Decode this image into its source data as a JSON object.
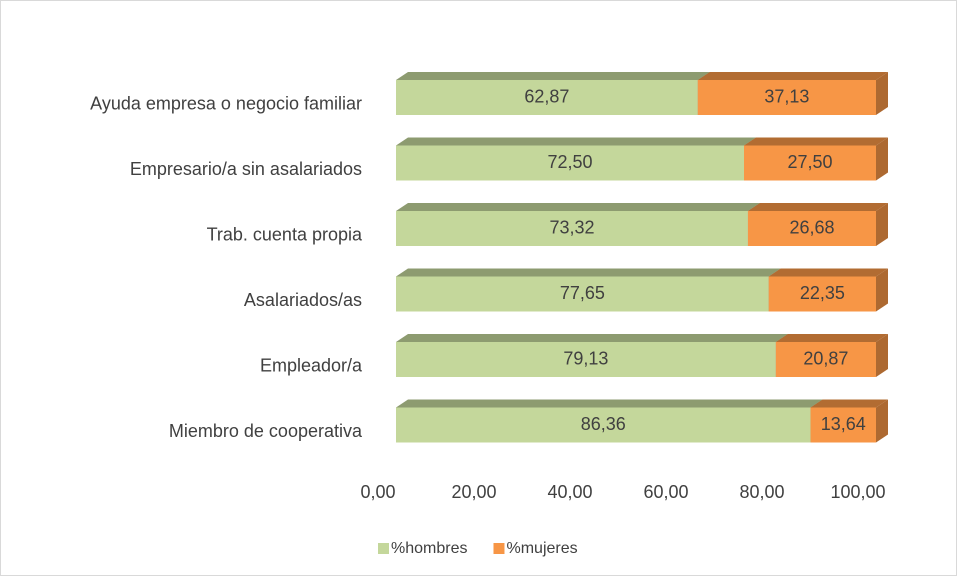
{
  "chart_data": {
    "type": "bar",
    "orientation": "horizontal",
    "stacked": true,
    "categories": [
      "Ayuda empresa o negocio familiar",
      "Empresario/a sin asalariados",
      "Trab. cuenta propia",
      "Asalariados/as",
      "Empleador/a",
      "Miembro de cooperativa"
    ],
    "series": [
      {
        "name": "%hombres",
        "color": "#c4d79b",
        "values": [
          62.87,
          72.5,
          73.32,
          77.65,
          79.13,
          86.36
        ],
        "value_labels": [
          "62,87",
          "72,50",
          "73,32",
          "77,65",
          "79,13",
          "86,36"
        ]
      },
      {
        "name": "%mujeres",
        "color": "#f79646",
        "values": [
          37.13,
          27.5,
          26.68,
          22.35,
          20.87,
          13.64
        ],
        "value_labels": [
          "37,13",
          "27,50",
          "26,68",
          "22,35",
          "20,87",
          "13,64"
        ]
      }
    ],
    "xlim": [
      0,
      100
    ],
    "xticks": [
      {
        "value": 0,
        "label": "0,00"
      },
      {
        "value": 20,
        "label": "20,00"
      },
      {
        "value": 40,
        "label": "40,00"
      },
      {
        "value": 60,
        "label": "60,00"
      },
      {
        "value": 80,
        "label": "80,00"
      },
      {
        "value": 100,
        "label": "100,00"
      }
    ],
    "legend": "bottom"
  }
}
